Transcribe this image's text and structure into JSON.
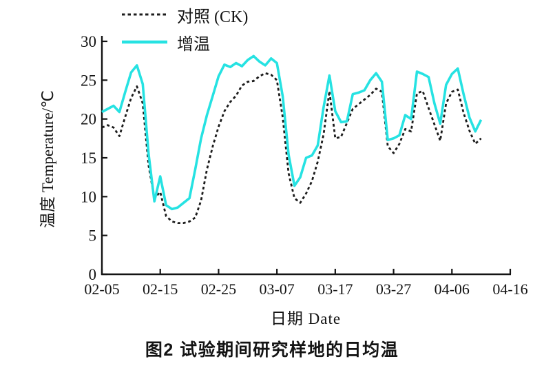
{
  "figure": {
    "caption": "图2  试验期间研究样地的日均温"
  },
  "chart_data": {
    "type": "line",
    "title": "",
    "xlabel": "日期 Date",
    "ylabel": "温度 Temperature/℃",
    "grid": false,
    "legend_position": "top-left",
    "ylim": [
      0,
      30
    ],
    "y_ticks": [
      0,
      5,
      10,
      15,
      20,
      25,
      30
    ],
    "x_tick_labels": [
      "02-05",
      "02-15",
      "02-25",
      "03-07",
      "03-17",
      "03-27",
      "04-06",
      "04-16"
    ],
    "x_tick_days": [
      0,
      10,
      20,
      30,
      40,
      50,
      60,
      70
    ],
    "xlim_days": [
      0,
      70
    ],
    "x_dates": [
      "02-05",
      "02-06",
      "02-07",
      "02-08",
      "02-09",
      "02-10",
      "02-11",
      "02-12",
      "02-13",
      "02-14",
      "02-15",
      "02-16",
      "02-17",
      "02-18",
      "02-19",
      "02-20",
      "02-21",
      "02-22",
      "02-23",
      "02-24",
      "02-25",
      "02-26",
      "02-27",
      "02-28",
      "03-01",
      "03-02",
      "03-03",
      "03-04",
      "03-05",
      "03-06",
      "03-07",
      "03-08",
      "03-09",
      "03-10",
      "03-11",
      "03-12",
      "03-13",
      "03-14",
      "03-15",
      "03-16",
      "03-17",
      "03-18",
      "03-19",
      "03-20",
      "03-21",
      "03-22",
      "03-23",
      "03-24",
      "03-25",
      "03-26",
      "03-27",
      "03-28",
      "03-29",
      "03-30",
      "03-31",
      "04-01",
      "04-02",
      "04-03",
      "04-04",
      "04-05",
      "04-06",
      "04-07",
      "04-08",
      "04-09",
      "04-10",
      "04-11"
    ],
    "series": [
      {
        "name": "对照 (CK)",
        "style": "dashed",
        "color": "#1c1c1c",
        "values": [
          18.9,
          19.2,
          18.9,
          17.8,
          20.3,
          22.7,
          24.2,
          22.0,
          14.0,
          9.8,
          10.6,
          7.5,
          6.8,
          6.6,
          6.6,
          6.8,
          7.3,
          9.5,
          13.5,
          16.5,
          19.0,
          21.0,
          22.2,
          23.0,
          24.3,
          24.8,
          24.9,
          25.5,
          25.9,
          25.7,
          25.0,
          20.2,
          13.0,
          9.8,
          9.2,
          10.4,
          12.0,
          14.5,
          18.0,
          23.6,
          17.5,
          17.7,
          19.5,
          21.3,
          21.9,
          22.5,
          23.1,
          23.9,
          23.5,
          16.5,
          15.6,
          16.8,
          18.7,
          18.4,
          23.3,
          23.6,
          21.4,
          19.3,
          17.2,
          22.0,
          23.5,
          23.8,
          20.8,
          18.5,
          16.8,
          17.5
        ]
      },
      {
        "name": "增温",
        "style": "solid",
        "color": "#26e2e2",
        "values": [
          20.9,
          21.3,
          21.7,
          20.9,
          23.5,
          26.0,
          26.9,
          24.5,
          15.5,
          9.4,
          12.6,
          8.9,
          8.4,
          8.6,
          9.2,
          9.8,
          13.5,
          17.5,
          20.5,
          23.0,
          25.5,
          27.0,
          26.7,
          27.2,
          26.8,
          27.6,
          28.1,
          27.4,
          26.9,
          27.8,
          27.2,
          22.9,
          15.4,
          11.4,
          12.5,
          15.0,
          15.3,
          16.6,
          21.5,
          25.6,
          21.0,
          19.6,
          19.7,
          23.2,
          23.4,
          23.7,
          25.0,
          25.9,
          24.8,
          17.3,
          17.5,
          17.9,
          20.5,
          20.0,
          26.1,
          25.8,
          25.4,
          22.0,
          19.4,
          24.4,
          25.8,
          26.5,
          23.2,
          20.2,
          18.4,
          19.9
        ]
      }
    ],
    "axis_color": "#141414"
  }
}
